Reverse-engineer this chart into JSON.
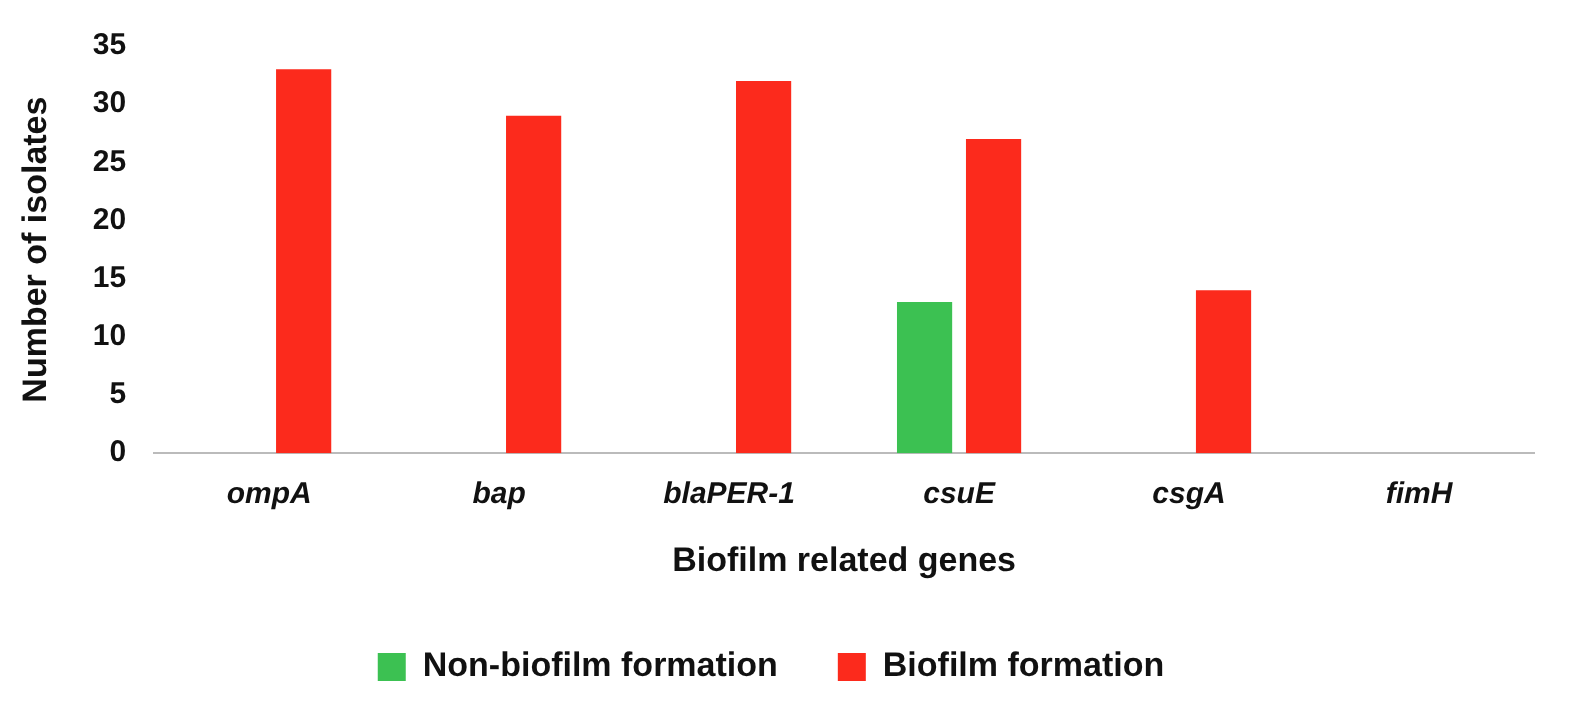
{
  "chart_data": {
    "type": "bar",
    "xlabel": "Biofilm related genes",
    "ylabel": "Number of isolates",
    "categories": [
      "ompA",
      "bap",
      "blaPER-1",
      "csuE",
      "csgA",
      "fimH"
    ],
    "series": [
      {
        "name": "Non-biofilm formation",
        "color": "#3cc152",
        "values": [
          0,
          0,
          0,
          13,
          0,
          0
        ]
      },
      {
        "name": "Biofilm formation",
        "color": "#fc2a1c",
        "values": [
          33,
          29,
          32,
          27,
          14,
          0
        ]
      }
    ],
    "ylim": [
      0,
      35
    ],
    "yticks": [
      0,
      5,
      10,
      15,
      20,
      25,
      30,
      35
    ],
    "grid": false,
    "legend": "bottom"
  }
}
